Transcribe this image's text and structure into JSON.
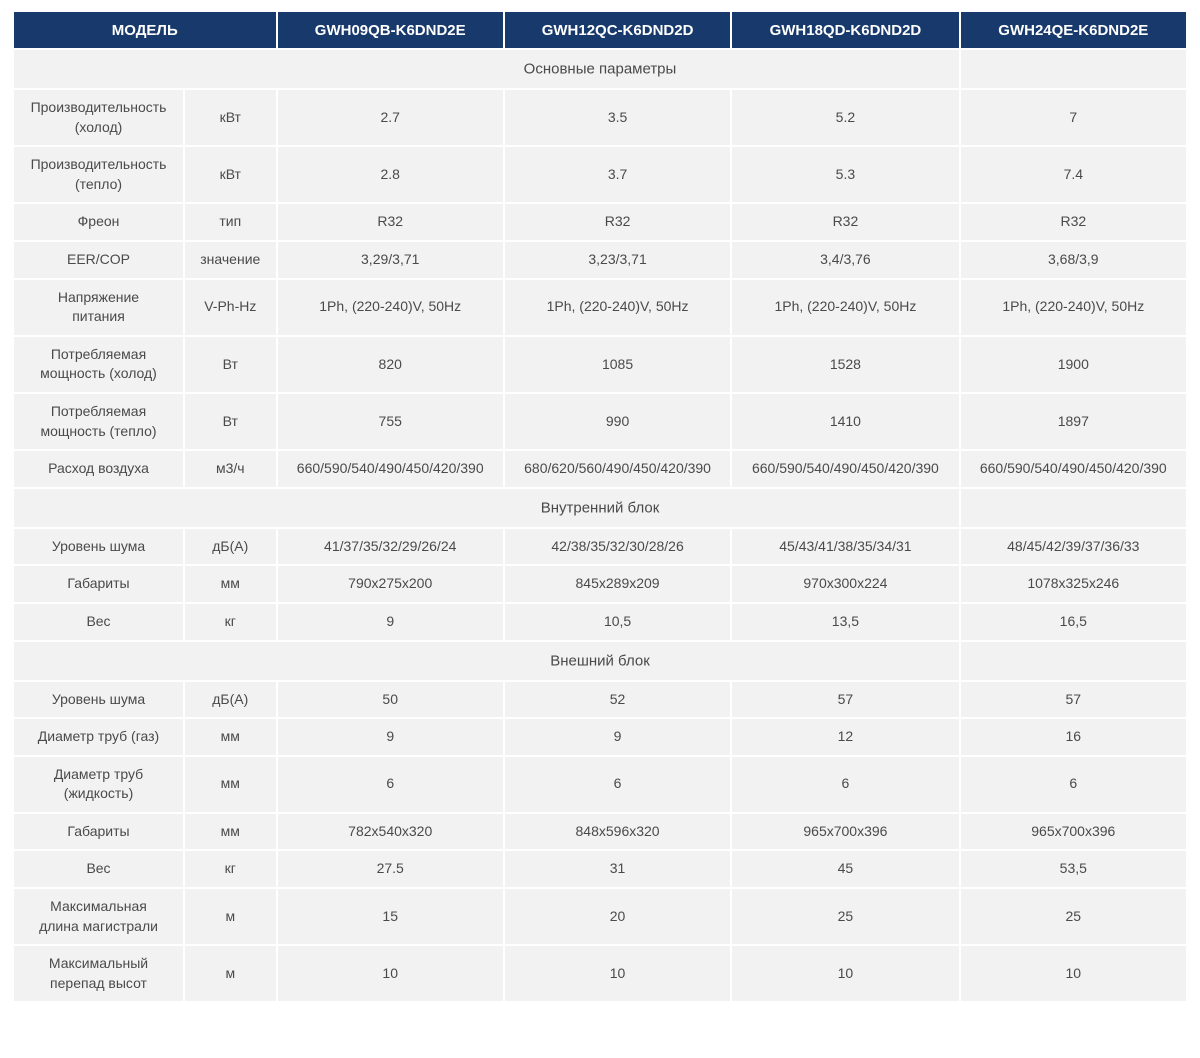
{
  "table": {
    "colors": {
      "header_bg": "#18396b",
      "header_text": "#ffffff",
      "cell_bg": "#f2f2f2",
      "body_text": "#4a4a4a",
      "page_bg": "#ffffff"
    },
    "header": {
      "model_label": "МОДЕЛЬ",
      "models": [
        "GWH09QB-K6DND2E",
        "GWH12QC-K6DND2D",
        "GWH18QD-K6DND2D",
        "GWH24QE-K6DND2E"
      ]
    },
    "sections": [
      {
        "title": "Основные параметры",
        "rows": [
          {
            "label": "Производительность\n(холод)",
            "unit": "кВт",
            "values": [
              "2.7",
              "3.5",
              "5.2",
              "7"
            ]
          },
          {
            "label": "Производительность\n(тепло)",
            "unit": "кВт",
            "values": [
              "2.8",
              "3.7",
              "5.3",
              "7.4"
            ]
          },
          {
            "label": "Фреон",
            "unit": "тип",
            "values": [
              "R32",
              "R32",
              "R32",
              "R32"
            ]
          },
          {
            "label": "EER/COP",
            "unit": "значение",
            "values": [
              "3,29/3,71",
              "3,23/3,71",
              "3,4/3,76",
              "3,68/3,9"
            ]
          },
          {
            "label": "Напряжение\nпитания",
            "unit": "V-Ph-Hz",
            "values": [
              "1Ph, (220-240)V, 50Hz",
              "1Ph, (220-240)V, 50Hz",
              "1Ph, (220-240)V, 50Hz",
              "1Ph, (220-240)V, 50Hz"
            ]
          },
          {
            "label": "Потребляемая\nмощность (холод)",
            "unit": "Вт",
            "values": [
              "820",
              "1085",
              "1528",
              "1900"
            ]
          },
          {
            "label": "Потребляемая\nмощность (тепло)",
            "unit": "Вт",
            "values": [
              "755",
              "990",
              "1410",
              "1897"
            ]
          },
          {
            "label": "Расход воздуха",
            "unit": "м3/ч",
            "values": [
              "660/590/540/490/450/420/390",
              "680/620/560/490/450/420/390",
              "660/590/540/490/450/420/390",
              "660/590/540/490/450/420/390"
            ]
          }
        ]
      },
      {
        "title": "Внутренний блок",
        "rows": [
          {
            "label": "Уровень шума",
            "unit": "дБ(А)",
            "values": [
              "41/37/35/32/29/26/24",
              "42/38/35/32/30/28/26",
              "45/43/41/38/35/34/31",
              "48/45/42/39/37/36/33"
            ]
          },
          {
            "label": "Габариты",
            "unit": "мм",
            "values": [
              "790х275х200",
              "845х289х209",
              "970х300х224",
              "1078х325х246"
            ]
          },
          {
            "label": "Вес",
            "unit": "кг",
            "values": [
              "9",
              "10,5",
              "13,5",
              "16,5"
            ]
          }
        ]
      },
      {
        "title": "Внешний блок",
        "rows": [
          {
            "label": "Уровень шума",
            "unit": "дБ(А)",
            "values": [
              "50",
              "52",
              "57",
              "57"
            ]
          },
          {
            "label": "Диаметр труб (газ)",
            "unit": "мм",
            "values": [
              "9",
              "9",
              "12",
              "16"
            ]
          },
          {
            "label": "Диаметр труб\n(жидкость)",
            "unit": "мм",
            "values": [
              "6",
              "6",
              "6",
              "6"
            ]
          },
          {
            "label": "Габариты",
            "unit": "мм",
            "values": [
              "782х540х320",
              "848х596х320",
              "965х700х396",
              "965х700х396"
            ]
          },
          {
            "label": "Вес",
            "unit": "кг",
            "values": [
              "27.5",
              "31",
              "45",
              "53,5"
            ]
          },
          {
            "label": "Максимальная\nдлина магистрали",
            "unit": "м",
            "values": [
              "15",
              "20",
              "25",
              "25"
            ]
          },
          {
            "label": "Максимальный\nперепад высот",
            "unit": "м",
            "values": [
              "10",
              "10",
              "10",
              "10"
            ]
          }
        ]
      }
    ]
  }
}
